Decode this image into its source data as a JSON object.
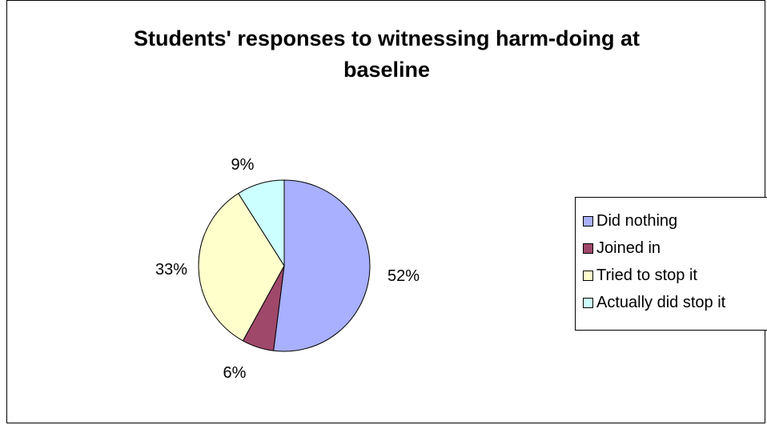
{
  "chart_data": {
    "type": "pie",
    "title_lines": [
      "Students' responses to witnessing harm-doing at",
      "baseline"
    ],
    "categories": [
      "Did nothing",
      "Joined in",
      "Tried to stop it",
      "Actually did stop it"
    ],
    "values": [
      52,
      6,
      33,
      9
    ],
    "labels": [
      "52%",
      "6%",
      "33%",
      "9%"
    ],
    "colors": [
      "#A8B0FF",
      "#A0486A",
      "#FFFFCC",
      "#CCFFFF"
    ],
    "legend_position": "right"
  }
}
